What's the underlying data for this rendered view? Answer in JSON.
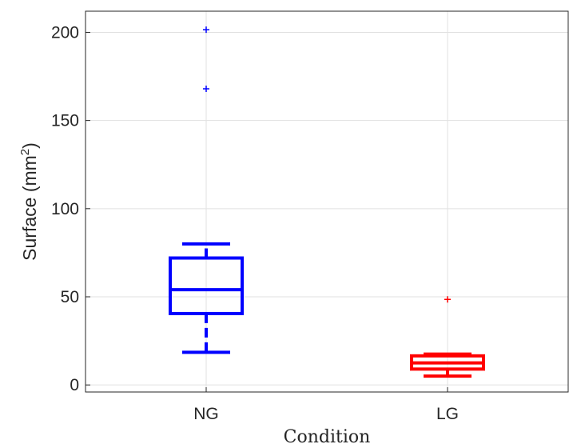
{
  "chart_data": {
    "type": "boxplot",
    "xlabel": "Condition",
    "ylabel": "Surface (mm",
    "ylabel_superscript": "2",
    "ylabel_close": ")",
    "categories": [
      "NG",
      "LG"
    ],
    "yticks": [
      "0",
      "50",
      "100",
      "150",
      "200"
    ],
    "ylim": [
      -4,
      212
    ],
    "grid": true,
    "series": [
      {
        "category": "NG",
        "color": "#0000ff",
        "whisker_low": 18.5,
        "q1": 40.5,
        "median": 54,
        "q3": 72,
        "whisker_high": 80,
        "outliers": [
          168,
          201.5
        ]
      },
      {
        "category": "LG",
        "color": "#ff0000",
        "whisker_low": 5,
        "q1": 9,
        "median": 12.5,
        "q3": 16.5,
        "whisker_high": 17.5,
        "outliers": [
          48.5
        ]
      }
    ]
  }
}
